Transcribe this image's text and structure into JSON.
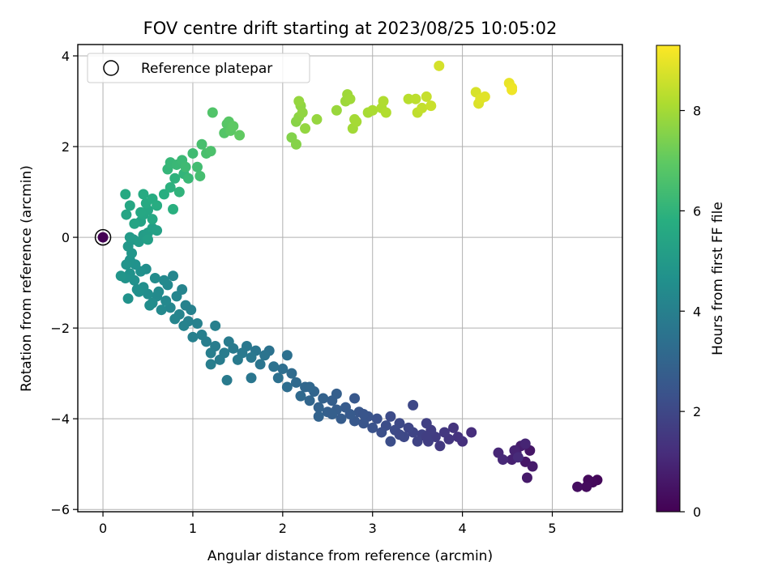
{
  "chart_data": {
    "type": "scatter",
    "title": "FOV centre drift starting at 2023/08/25 10:05:02",
    "xlabel": "Angular distance from reference (arcmin)",
    "ylabel": "Rotation from reference (arcmin)",
    "xlim": [
      -0.28,
      5.78
    ],
    "ylim": [
      -6.05,
      4.25
    ],
    "xticks": [
      0,
      1,
      2,
      3,
      4,
      5
    ],
    "xtick_labels": [
      "0",
      "1",
      "2",
      "3",
      "4",
      "5"
    ],
    "yticks": [
      -6,
      -4,
      -2,
      0,
      2,
      4
    ],
    "ytick_labels": [
      "−6",
      "−4",
      "−2",
      "0",
      "2",
      "4"
    ],
    "grid": true,
    "legend": {
      "placement": "top-left",
      "entries": [
        {
          "label": "Reference platepar",
          "marker": "open-circle"
        }
      ]
    },
    "colorbar": {
      "label": "Hours from first FF file",
      "colormap": "viridis",
      "range": [
        0,
        9.3
      ],
      "ticks": [
        0,
        2,
        4,
        6,
        8
      ],
      "tick_labels": [
        "0",
        "2",
        "4",
        "6",
        "8"
      ]
    },
    "reference_point": {
      "x": 0,
      "y": 0,
      "hours": 0
    },
    "series": [
      {
        "points": [
          [
            5.5,
            -5.35,
            0.15
          ],
          [
            5.45,
            -5.4,
            0.2
          ],
          [
            5.4,
            -5.35,
            0.25
          ],
          [
            5.38,
            -5.5,
            0.3
          ],
          [
            5.28,
            -5.5,
            0.35
          ],
          [
            4.75,
            -4.7,
            0.55
          ],
          [
            4.7,
            -4.95,
            0.6
          ],
          [
            4.72,
            -5.3,
            0.65
          ],
          [
            4.78,
            -5.05,
            0.7
          ],
          [
            4.65,
            -4.6,
            0.75
          ],
          [
            4.6,
            -4.75,
            0.8
          ],
          [
            4.55,
            -4.9,
            0.85
          ],
          [
            4.58,
            -4.7,
            0.9
          ],
          [
            4.7,
            -4.55,
            0.95
          ],
          [
            4.4,
            -4.75,
            1.0
          ],
          [
            4.45,
            -4.9,
            1.05
          ],
          [
            4.62,
            -4.85,
            1.1
          ],
          [
            4.1,
            -4.3,
            1.2
          ],
          [
            4.0,
            -4.5,
            1.3
          ],
          [
            3.95,
            -4.4,
            1.35
          ],
          [
            3.9,
            -4.2,
            1.4
          ],
          [
            3.85,
            -4.45,
            1.45
          ],
          [
            3.8,
            -4.3,
            1.5
          ],
          [
            3.75,
            -4.6,
            1.55
          ],
          [
            3.7,
            -4.4,
            1.6
          ],
          [
            3.65,
            -4.25,
            1.65
          ],
          [
            3.62,
            -4.5,
            1.7
          ],
          [
            3.6,
            -4.1,
            1.75
          ],
          [
            3.55,
            -4.35,
            1.8
          ],
          [
            3.5,
            -4.5,
            1.85
          ],
          [
            3.45,
            -4.3,
            1.9
          ],
          [
            3.4,
            -4.2,
            1.95
          ],
          [
            3.35,
            -4.4,
            2.0
          ],
          [
            3.3,
            -4.1,
            2.05
          ],
          [
            3.25,
            -4.25,
            2.1
          ],
          [
            3.2,
            -3.95,
            2.15
          ],
          [
            3.15,
            -4.15,
            2.2
          ],
          [
            3.1,
            -4.3,
            2.25
          ],
          [
            3.05,
            -4.0,
            2.3
          ],
          [
            3.0,
            -4.2,
            2.35
          ],
          [
            2.95,
            -3.95,
            2.4
          ],
          [
            2.9,
            -4.1,
            2.45
          ],
          [
            2.85,
            -3.85,
            2.5
          ],
          [
            2.8,
            -4.05,
            2.55
          ],
          [
            2.75,
            -3.9,
            2.6
          ],
          [
            2.7,
            -3.75,
            2.65
          ],
          [
            2.65,
            -4.0,
            2.7
          ],
          [
            2.6,
            -3.8,
            2.75
          ],
          [
            2.55,
            -3.6,
            2.8
          ],
          [
            2.5,
            -3.85,
            2.85
          ],
          [
            2.45,
            -3.55,
            2.9
          ],
          [
            2.4,
            -3.75,
            2.95
          ],
          [
            2.35,
            -3.4,
            3.0
          ],
          [
            2.3,
            -3.6,
            3.05
          ],
          [
            2.25,
            -3.3,
            3.1
          ],
          [
            2.2,
            -3.5,
            3.15
          ],
          [
            2.15,
            -3.2,
            3.2
          ],
          [
            2.1,
            -3.0,
            3.25
          ],
          [
            2.05,
            -3.3,
            3.3
          ],
          [
            2.0,
            -2.9,
            3.35
          ],
          [
            1.95,
            -3.1,
            3.4
          ],
          [
            1.9,
            -2.85,
            3.45
          ],
          [
            3.3,
            -4.35,
            2.05
          ],
          [
            3.6,
            -4.4,
            1.7
          ],
          [
            3.45,
            -3.7,
            2.0
          ],
          [
            3.2,
            -4.5,
            2.2
          ],
          [
            2.8,
            -3.55,
            2.55
          ],
          [
            2.55,
            -3.9,
            2.8
          ],
          [
            2.4,
            -3.95,
            2.95
          ],
          [
            2.3,
            -3.3,
            3.1
          ],
          [
            2.6,
            -3.45,
            2.8
          ],
          [
            2.9,
            -3.9,
            2.45
          ],
          [
            2.05,
            -2.6,
            3.4
          ],
          [
            1.85,
            -2.5,
            3.5
          ],
          [
            1.8,
            -2.6,
            3.55
          ],
          [
            1.75,
            -2.8,
            3.6
          ],
          [
            1.7,
            -2.5,
            3.65
          ],
          [
            1.65,
            -2.65,
            3.7
          ],
          [
            1.6,
            -2.4,
            3.72
          ],
          [
            1.55,
            -2.55,
            3.75
          ],
          [
            1.5,
            -2.7,
            3.78
          ],
          [
            1.45,
            -2.45,
            3.8
          ],
          [
            1.4,
            -2.3,
            3.82
          ],
          [
            1.35,
            -2.55,
            3.85
          ],
          [
            1.3,
            -2.7,
            3.88
          ],
          [
            1.25,
            -2.4,
            3.9
          ],
          [
            1.2,
            -2.55,
            3.92
          ],
          [
            1.15,
            -2.3,
            3.95
          ],
          [
            1.1,
            -2.15,
            3.97
          ],
          [
            1.0,
            -2.2,
            4.0
          ],
          [
            0.95,
            -1.85,
            4.05
          ],
          [
            0.9,
            -1.95,
            4.1
          ],
          [
            0.85,
            -1.7,
            4.15
          ],
          [
            1.05,
            -1.9,
            4.05
          ],
          [
            1.2,
            -2.8,
            3.95
          ],
          [
            1.38,
            -3.15,
            3.8
          ],
          [
            1.65,
            -3.1,
            3.65
          ],
          [
            1.25,
            -1.95,
            4.0
          ],
          [
            0.8,
            -1.8,
            4.2
          ],
          [
            0.75,
            -1.55,
            4.25
          ],
          [
            0.7,
            -1.4,
            4.3
          ],
          [
            0.65,
            -1.6,
            4.35
          ],
          [
            0.6,
            -1.3,
            4.4
          ],
          [
            0.55,
            -1.45,
            4.45
          ],
          [
            0.5,
            -1.25,
            4.5
          ],
          [
            0.45,
            -1.1,
            4.55
          ],
          [
            0.4,
            -1.2,
            4.6
          ],
          [
            0.35,
            -0.95,
            4.65
          ],
          [
            0.3,
            -0.8,
            4.7
          ],
          [
            0.25,
            -0.9,
            4.75
          ],
          [
            0.2,
            -0.85,
            4.8
          ],
          [
            0.28,
            -1.35,
            4.7
          ],
          [
            0.38,
            -1.15,
            4.6
          ],
          [
            0.52,
            -1.5,
            4.5
          ],
          [
            0.62,
            -1.2,
            4.4
          ],
          [
            0.72,
            -1.05,
            4.3
          ],
          [
            0.82,
            -1.3,
            4.2
          ],
          [
            0.92,
            -1.5,
            4.1
          ],
          [
            0.98,
            -1.6,
            4.05
          ],
          [
            0.88,
            -1.15,
            4.15
          ],
          [
            0.78,
            -0.85,
            4.25
          ],
          [
            0.68,
            -0.95,
            4.35
          ],
          [
            0.58,
            -0.9,
            4.45
          ],
          [
            0.48,
            -0.7,
            4.55
          ],
          [
            0.42,
            -0.75,
            4.6
          ],
          [
            0.36,
            -0.6,
            4.68
          ],
          [
            0.3,
            -0.5,
            4.72
          ],
          [
            0.26,
            -0.6,
            4.78
          ],
          [
            0.32,
            -0.35,
            4.85
          ],
          [
            0.28,
            -0.2,
            4.9
          ],
          [
            0.34,
            -0.05,
            4.95
          ],
          [
            0.3,
            0.0,
            5.0
          ],
          [
            0.4,
            -0.1,
            5.05
          ],
          [
            0.45,
            0.05,
            5.1
          ],
          [
            0.5,
            0.1,
            5.15
          ],
          [
            0.55,
            0.2,
            5.2
          ],
          [
            0.6,
            0.15,
            5.25
          ],
          [
            0.5,
            -0.05,
            5.2
          ],
          [
            0.42,
            0.35,
            5.35
          ],
          [
            0.45,
            0.5,
            5.45
          ],
          [
            0.5,
            0.6,
            5.5
          ],
          [
            0.55,
            0.4,
            5.55
          ],
          [
            0.48,
            0.75,
            5.6
          ],
          [
            0.42,
            0.55,
            5.55
          ],
          [
            0.35,
            0.3,
            5.4
          ],
          [
            0.3,
            0.7,
            5.5
          ],
          [
            0.26,
            0.5,
            5.45
          ],
          [
            0.25,
            0.95,
            5.6
          ],
          [
            0.45,
            0.95,
            5.65
          ],
          [
            0.55,
            0.85,
            5.7
          ],
          [
            0.6,
            0.7,
            5.75
          ],
          [
            0.68,
            0.95,
            5.8
          ],
          [
            0.75,
            1.1,
            5.9
          ],
          [
            0.8,
            1.3,
            5.95
          ],
          [
            0.85,
            1.0,
            6.0
          ],
          [
            0.9,
            1.4,
            6.05
          ],
          [
            0.78,
            0.62,
            5.85
          ],
          [
            0.72,
            1.5,
            6.1
          ],
          [
            0.75,
            1.65,
            6.15
          ],
          [
            0.82,
            1.6,
            6.2
          ],
          [
            0.88,
            1.7,
            6.25
          ],
          [
            0.92,
            1.55,
            6.3
          ],
          [
            0.95,
            1.3,
            6.2
          ],
          [
            1.0,
            1.85,
            6.35
          ],
          [
            1.05,
            1.55,
            6.4
          ],
          [
            1.08,
            1.35,
            6.45
          ],
          [
            1.1,
            2.05,
            6.5
          ],
          [
            1.15,
            1.85,
            6.55
          ],
          [
            1.2,
            1.9,
            6.6
          ],
          [
            1.22,
            2.75,
            6.7
          ],
          [
            1.35,
            2.3,
            6.75
          ],
          [
            1.38,
            2.5,
            6.8
          ],
          [
            1.4,
            2.55,
            6.85
          ],
          [
            1.42,
            2.35,
            6.9
          ],
          [
            1.45,
            2.45,
            6.95
          ],
          [
            1.52,
            2.25,
            7.0
          ],
          [
            2.1,
            2.2,
            7.5
          ],
          [
            2.15,
            2.05,
            7.55
          ],
          [
            2.15,
            2.55,
            7.6
          ],
          [
            2.18,
            2.65,
            7.65
          ],
          [
            2.2,
            2.9,
            7.7
          ],
          [
            2.22,
            2.75,
            7.72
          ],
          [
            2.25,
            2.4,
            7.75
          ],
          [
            2.18,
            3.0,
            7.78
          ],
          [
            2.38,
            2.6,
            7.8
          ],
          [
            2.6,
            2.8,
            7.85
          ],
          [
            2.7,
            3.0,
            7.9
          ],
          [
            2.72,
            3.15,
            7.92
          ],
          [
            2.75,
            3.05,
            7.95
          ],
          [
            2.78,
            2.4,
            7.98
          ],
          [
            2.8,
            2.6,
            8.0
          ],
          [
            2.82,
            2.55,
            8.02
          ],
          [
            2.95,
            2.75,
            8.05
          ],
          [
            3.0,
            2.8,
            8.1
          ],
          [
            3.1,
            2.85,
            8.15
          ],
          [
            3.12,
            3.0,
            8.18
          ],
          [
            3.15,
            2.75,
            8.2
          ],
          [
            3.4,
            3.05,
            8.3
          ],
          [
            3.48,
            3.05,
            8.35
          ],
          [
            3.5,
            2.75,
            8.4
          ],
          [
            3.55,
            2.85,
            8.45
          ],
          [
            3.6,
            3.1,
            8.5
          ],
          [
            3.65,
            2.9,
            8.55
          ],
          [
            3.74,
            3.78,
            8.7
          ],
          [
            4.15,
            3.2,
            8.75
          ],
          [
            4.18,
            2.95,
            8.8
          ],
          [
            4.2,
            3.05,
            8.85
          ],
          [
            4.25,
            3.1,
            8.9
          ],
          [
            4.52,
            3.4,
            9.0
          ],
          [
            4.55,
            3.3,
            9.05
          ],
          [
            4.55,
            3.25,
            9.1
          ]
        ]
      }
    ]
  }
}
